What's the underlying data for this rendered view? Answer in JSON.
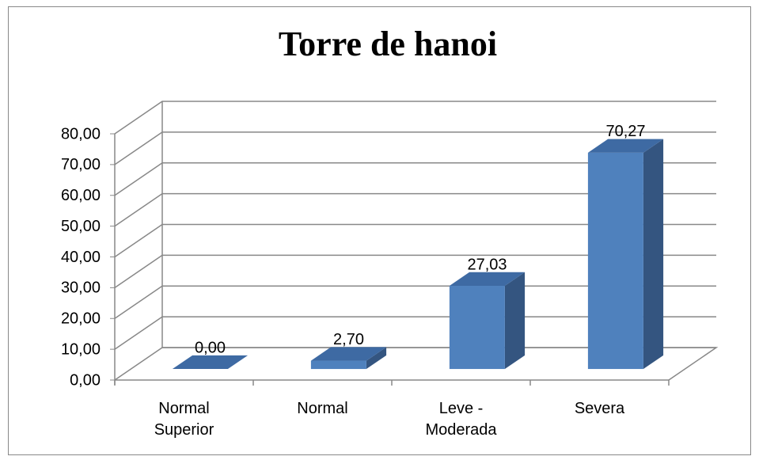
{
  "chart_data": {
    "type": "bar3d",
    "title": "Torre de hanoi",
    "categories": [
      "Normal Superior",
      "Normal",
      "Leve - Moderada",
      "Severa"
    ],
    "values": [
      0,
      2.7,
      27.03,
      70.27
    ],
    "value_labels": [
      "0,00",
      "2,70",
      "27,03",
      "70,27"
    ],
    "color": "#4f81bd",
    "ylim": [
      0,
      80
    ],
    "yticks": [
      {
        "value": 0,
        "label": "0,00"
      },
      {
        "value": 10,
        "label": "10,00"
      },
      {
        "value": 20,
        "label": "20,00"
      },
      {
        "value": 30,
        "label": "30,00"
      },
      {
        "value": 40,
        "label": "40,00"
      },
      {
        "value": 50,
        "label": "50,00"
      },
      {
        "value": 60,
        "label": "60,00"
      },
      {
        "value": 70,
        "label": "70,00"
      },
      {
        "value": 80,
        "label": "80,00"
      }
    ],
    "grid": true
  }
}
